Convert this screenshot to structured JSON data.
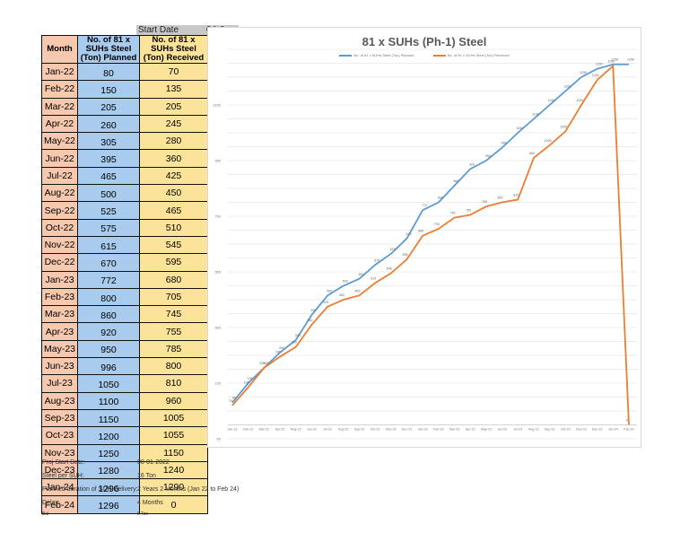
{
  "start": {
    "label": "Start Date",
    "value": "04-Jan"
  },
  "table": {
    "headers": {
      "month": "Month",
      "planned": "No. of 81 x SUHs Steel (Ton) Planned",
      "received": "No. of 81 x SUHs Steel (Ton) Received"
    },
    "rows": [
      {
        "month": "Jan-22",
        "planned": "80",
        "received": "70"
      },
      {
        "month": "Feb-22",
        "planned": "150",
        "received": "135"
      },
      {
        "month": "Mar-22",
        "planned": "205",
        "received": "205"
      },
      {
        "month": "Apr-22",
        "planned": "260",
        "received": "245"
      },
      {
        "month": "May-22",
        "planned": "305",
        "received": "280"
      },
      {
        "month": "Jun-22",
        "planned": "395",
        "received": "360"
      },
      {
        "month": "Jul-22",
        "planned": "465",
        "received": "425"
      },
      {
        "month": "Aug-22",
        "planned": "500",
        "received": "450"
      },
      {
        "month": "Sep-22",
        "planned": "525",
        "received": "465"
      },
      {
        "month": "Oct-22",
        "planned": "575",
        "received": "510"
      },
      {
        "month": "Nov-22",
        "planned": "615",
        "received": "545"
      },
      {
        "month": "Dec-22",
        "planned": "670",
        "received": "595"
      },
      {
        "month": "Jan-23",
        "planned": "772",
        "received": "680"
      },
      {
        "month": "Feb-23",
        "planned": "800",
        "received": "705"
      },
      {
        "month": "Mar-23",
        "planned": "860",
        "received": "745"
      },
      {
        "month": "Apr-23",
        "planned": "920",
        "received": "755"
      },
      {
        "month": "May-23",
        "planned": "950",
        "received": "785"
      },
      {
        "month": "Jun-23",
        "planned": "996",
        "received": "800"
      },
      {
        "month": "Jul-23",
        "planned": "1050",
        "received": "810"
      },
      {
        "month": "Aug-23",
        "planned": "1100",
        "received": "960"
      },
      {
        "month": "Sep-23",
        "planned": "1150",
        "received": "1005"
      },
      {
        "month": "Oct-23",
        "planned": "1200",
        "received": "1055"
      },
      {
        "month": "Nov-23",
        "planned": "1250",
        "received": "1150"
      },
      {
        "month": "Dec-23",
        "planned": "1280",
        "received": "1240"
      },
      {
        "month": "Jan-24",
        "planned": "1296",
        "received": "1290"
      },
      {
        "month": "Feb-24",
        "planned": "1296",
        "received": "0"
      }
    ]
  },
  "info": [
    {
      "key": "Proj Start Date:",
      "value": "00-01-2022"
    },
    {
      "key": "Steel per SUH:",
      "value": "16 Ton"
    },
    {
      "key": "Planned duration of SUH Delivery:",
      "value": "2 Years 2 Months (Jan 22 to Feb 24)"
    },
    {
      "key": "Delay:",
      "value": "4 Months"
    },
    {
      "key": "Bal",
      "value": "6 Ton"
    }
  ],
  "colors": {
    "planned": "#5b9bd5",
    "received": "#ed7d31",
    "grid": "#d9d9d9"
  },
  "chart_data": {
    "type": "line",
    "title": "81 x SUHs (Ph-1) Steel",
    "xlabel": "",
    "ylabel": "",
    "ylim": [
      -50,
      1350
    ],
    "yticks": [
      -50,
      150,
      350,
      550,
      750,
      950,
      1150
    ],
    "grid": true,
    "legend_position": "top",
    "categories": [
      "Jan-22",
      "Feb-22",
      "Mar-22",
      "Apr-22",
      "May-22",
      "Jun-22",
      "Jul-22",
      "Aug-22",
      "Sep-22",
      "Oct-22",
      "Nov-22",
      "Dec-22",
      "Jan-23",
      "Feb-23",
      "Mar-23",
      "Apr-23",
      "May-23",
      "Jun-23",
      "Jul-23",
      "Aug-23",
      "Sep-23",
      "Oct-23",
      "Nov-23",
      "Dec-23",
      "Jan-24",
      "Feb-24"
    ],
    "series": [
      {
        "name": "No. of 81 x SUHs Steel (Ton) Planned",
        "values": [
          80,
          150,
          205,
          260,
          305,
          395,
          465,
          500,
          525,
          575,
          615,
          670,
          772,
          800,
          860,
          920,
          950,
          996,
          1050,
          1100,
          1150,
          1200,
          1250,
          1280,
          1296,
          1296
        ]
      },
      {
        "name": "No. of 81 x SUHs Steel (Ton) Received",
        "values": [
          70,
          135,
          205,
          245,
          280,
          360,
          425,
          450,
          465,
          510,
          545,
          595,
          680,
          705,
          745,
          755,
          785,
          800,
          810,
          960,
          1005,
          1055,
          1150,
          1240,
          1290,
          0
        ]
      }
    ]
  }
}
